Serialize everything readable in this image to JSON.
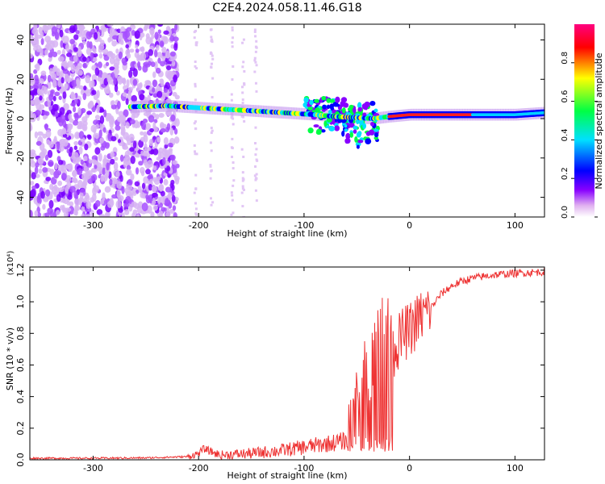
{
  "title": "C2E4.2024.058.11.46.G18",
  "colors": {
    "snr_line": "#ee3333",
    "colormap": [
      "#ffffff",
      "#e8c8f0",
      "#8800ff",
      "#0000ff",
      "#00e0ff",
      "#00ff44",
      "#ffff00",
      "#ff0000",
      "#ff0080"
    ]
  },
  "chart_data": [
    {
      "type": "heatmap",
      "panel": "top",
      "xlabel": "Height of straight line (km)",
      "ylabel": "Frequency (Hz)",
      "xlim": [
        -360,
        128
      ],
      "ylim": [
        -50,
        48
      ],
      "x_ticks": [
        -300,
        -200,
        -100,
        0,
        100
      ],
      "x_tick_labels": [
        "-300",
        "-200",
        "-100",
        "0",
        "100"
      ],
      "y_ticks": [
        -40,
        -20,
        0,
        20,
        40
      ],
      "y_tick_labels": [
        "-40",
        "-20",
        "0",
        "20",
        "40"
      ],
      "colorbar": {
        "label": "Normalized spectral amplitude",
        "range": [
          0,
          1
        ],
        "ticks": [
          0,
          0.2,
          0.4,
          0.6,
          0.8
        ],
        "tick_labels": [
          "0.0",
          "0.2",
          "0.4",
          "0.6",
          "0.8"
        ]
      },
      "signal_track": {
        "x": [
          -265,
          -230,
          -200,
          -150,
          -120,
          -90,
          -70,
          -50,
          -35,
          -20,
          0,
          60,
          100,
          128
        ],
        "freq": [
          6,
          6.5,
          5.5,
          4,
          3,
          2,
          1,
          0.5,
          0,
          1,
          2,
          2,
          2,
          3
        ]
      },
      "noise_region": {
        "x_start": -360,
        "x_end": -220
      },
      "grid": false
    },
    {
      "type": "line",
      "panel": "bottom",
      "xlabel": "Height of straight line (km)",
      "ylabel": "SNR (10 * v/v)",
      "y_scale_label": "(x10⁴)",
      "xlim": [
        -360,
        128
      ],
      "ylim": [
        0,
        1.22
      ],
      "x_ticks": [
        -300,
        -200,
        -100,
        0,
        100
      ],
      "x_tick_labels": [
        "-300",
        "-200",
        "-100",
        "0",
        "100"
      ],
      "y_ticks": [
        0,
        0.2,
        0.4,
        0.6,
        0.8,
        1.0,
        1.2
      ],
      "y_tick_labels": [
        "0.0",
        "0.2",
        "0.4",
        "0.6",
        "0.8",
        "1.0",
        "1.2"
      ],
      "series": [
        {
          "x": [
            -360,
            -300,
            -250,
            -210,
            -200,
            -195,
            -180,
            -150,
            -120,
            -100,
            -80,
            -60,
            -50,
            -40,
            -30,
            -20,
            -15,
            -10,
            -5,
            0,
            10,
            20,
            30,
            40,
            50,
            60,
            80,
            100,
            128
          ],
          "y": [
            0.01,
            0.01,
            0.012,
            0.02,
            0.04,
            0.07,
            0.03,
            0.04,
            0.06,
            0.08,
            0.1,
            0.12,
            0.2,
            0.35,
            0.45,
            0.55,
            0.7,
            0.75,
            0.8,
            0.82,
            0.9,
            0.96,
            1.05,
            1.1,
            1.13,
            1.15,
            1.17,
            1.18,
            1.19
          ]
        }
      ],
      "grid": false
    }
  ]
}
